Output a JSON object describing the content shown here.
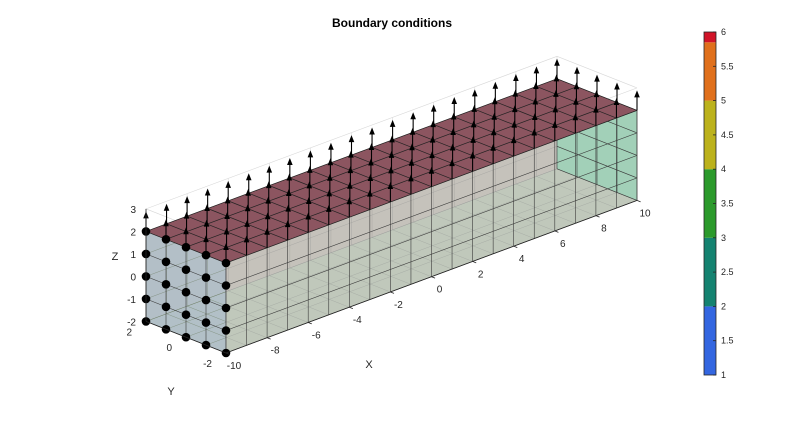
{
  "chart_data": {
    "type": "3d-mesh",
    "title": "Boundary conditions",
    "xlabel": "X",
    "ylabel": "Y",
    "zlabel": "Z",
    "xlim": [
      -10,
      10
    ],
    "ylim": [
      -3,
      3
    ],
    "zlim": [
      -3,
      3
    ],
    "x_ticks": [
      "-10",
      "-8",
      "-6",
      "-4",
      "-2",
      "0",
      "2",
      "4",
      "6",
      "8",
      "10"
    ],
    "y_ticks": [
      "-2",
      "0",
      "2"
    ],
    "z_ticks": [
      "-2",
      "-1",
      "0",
      "1",
      "2",
      "3"
    ],
    "grid": true,
    "mesh": {
      "x_elements": 20,
      "y_elements": 4,
      "z_elements": 4
    },
    "faces": [
      {
        "name": "top (z = 2)",
        "value": 6,
        "color": "#8c5560"
      },
      {
        "name": "left end (x = -10)",
        "value": 1,
        "color": "#b0bccb"
      },
      {
        "name": "front (y = -2)",
        "value": 2,
        "color": "#c0b4cf"
      },
      {
        "name": "back (y = 2)",
        "value": 4,
        "color": "#c6cd98"
      },
      {
        "name": "bottom (z = -2)",
        "value": 3,
        "color": "#b9de98"
      },
      {
        "name": "right end (x = 10)",
        "value": 2.5,
        "color": "#98cfb0"
      }
    ],
    "boundary_conditions": [
      {
        "type": "fixed nodes",
        "face": "x = -10",
        "marker": "filled black circle"
      },
      {
        "type": "upward load arrows",
        "face": "z = 2",
        "direction": "+Z"
      }
    ],
    "colorbar": {
      "ticks": [
        "1",
        "1.5",
        "2",
        "2.5",
        "3",
        "3.5",
        "4",
        "4.5",
        "5",
        "5.5",
        "6"
      ],
      "range": [
        1,
        6
      ],
      "bins": [
        {
          "from": 1,
          "to": 2,
          "color": "#3366e0"
        },
        {
          "from": 2,
          "to": 3,
          "color": "#148270"
        },
        {
          "from": 3,
          "to": 4,
          "color": "#2c9a2c"
        },
        {
          "from": 4,
          "to": 5,
          "color": "#bcb21c"
        },
        {
          "from": 5,
          "to": 6,
          "color": "#e0701c"
        },
        {
          "from": 6,
          "to": 6,
          "color": "#d11428"
        }
      ]
    }
  }
}
